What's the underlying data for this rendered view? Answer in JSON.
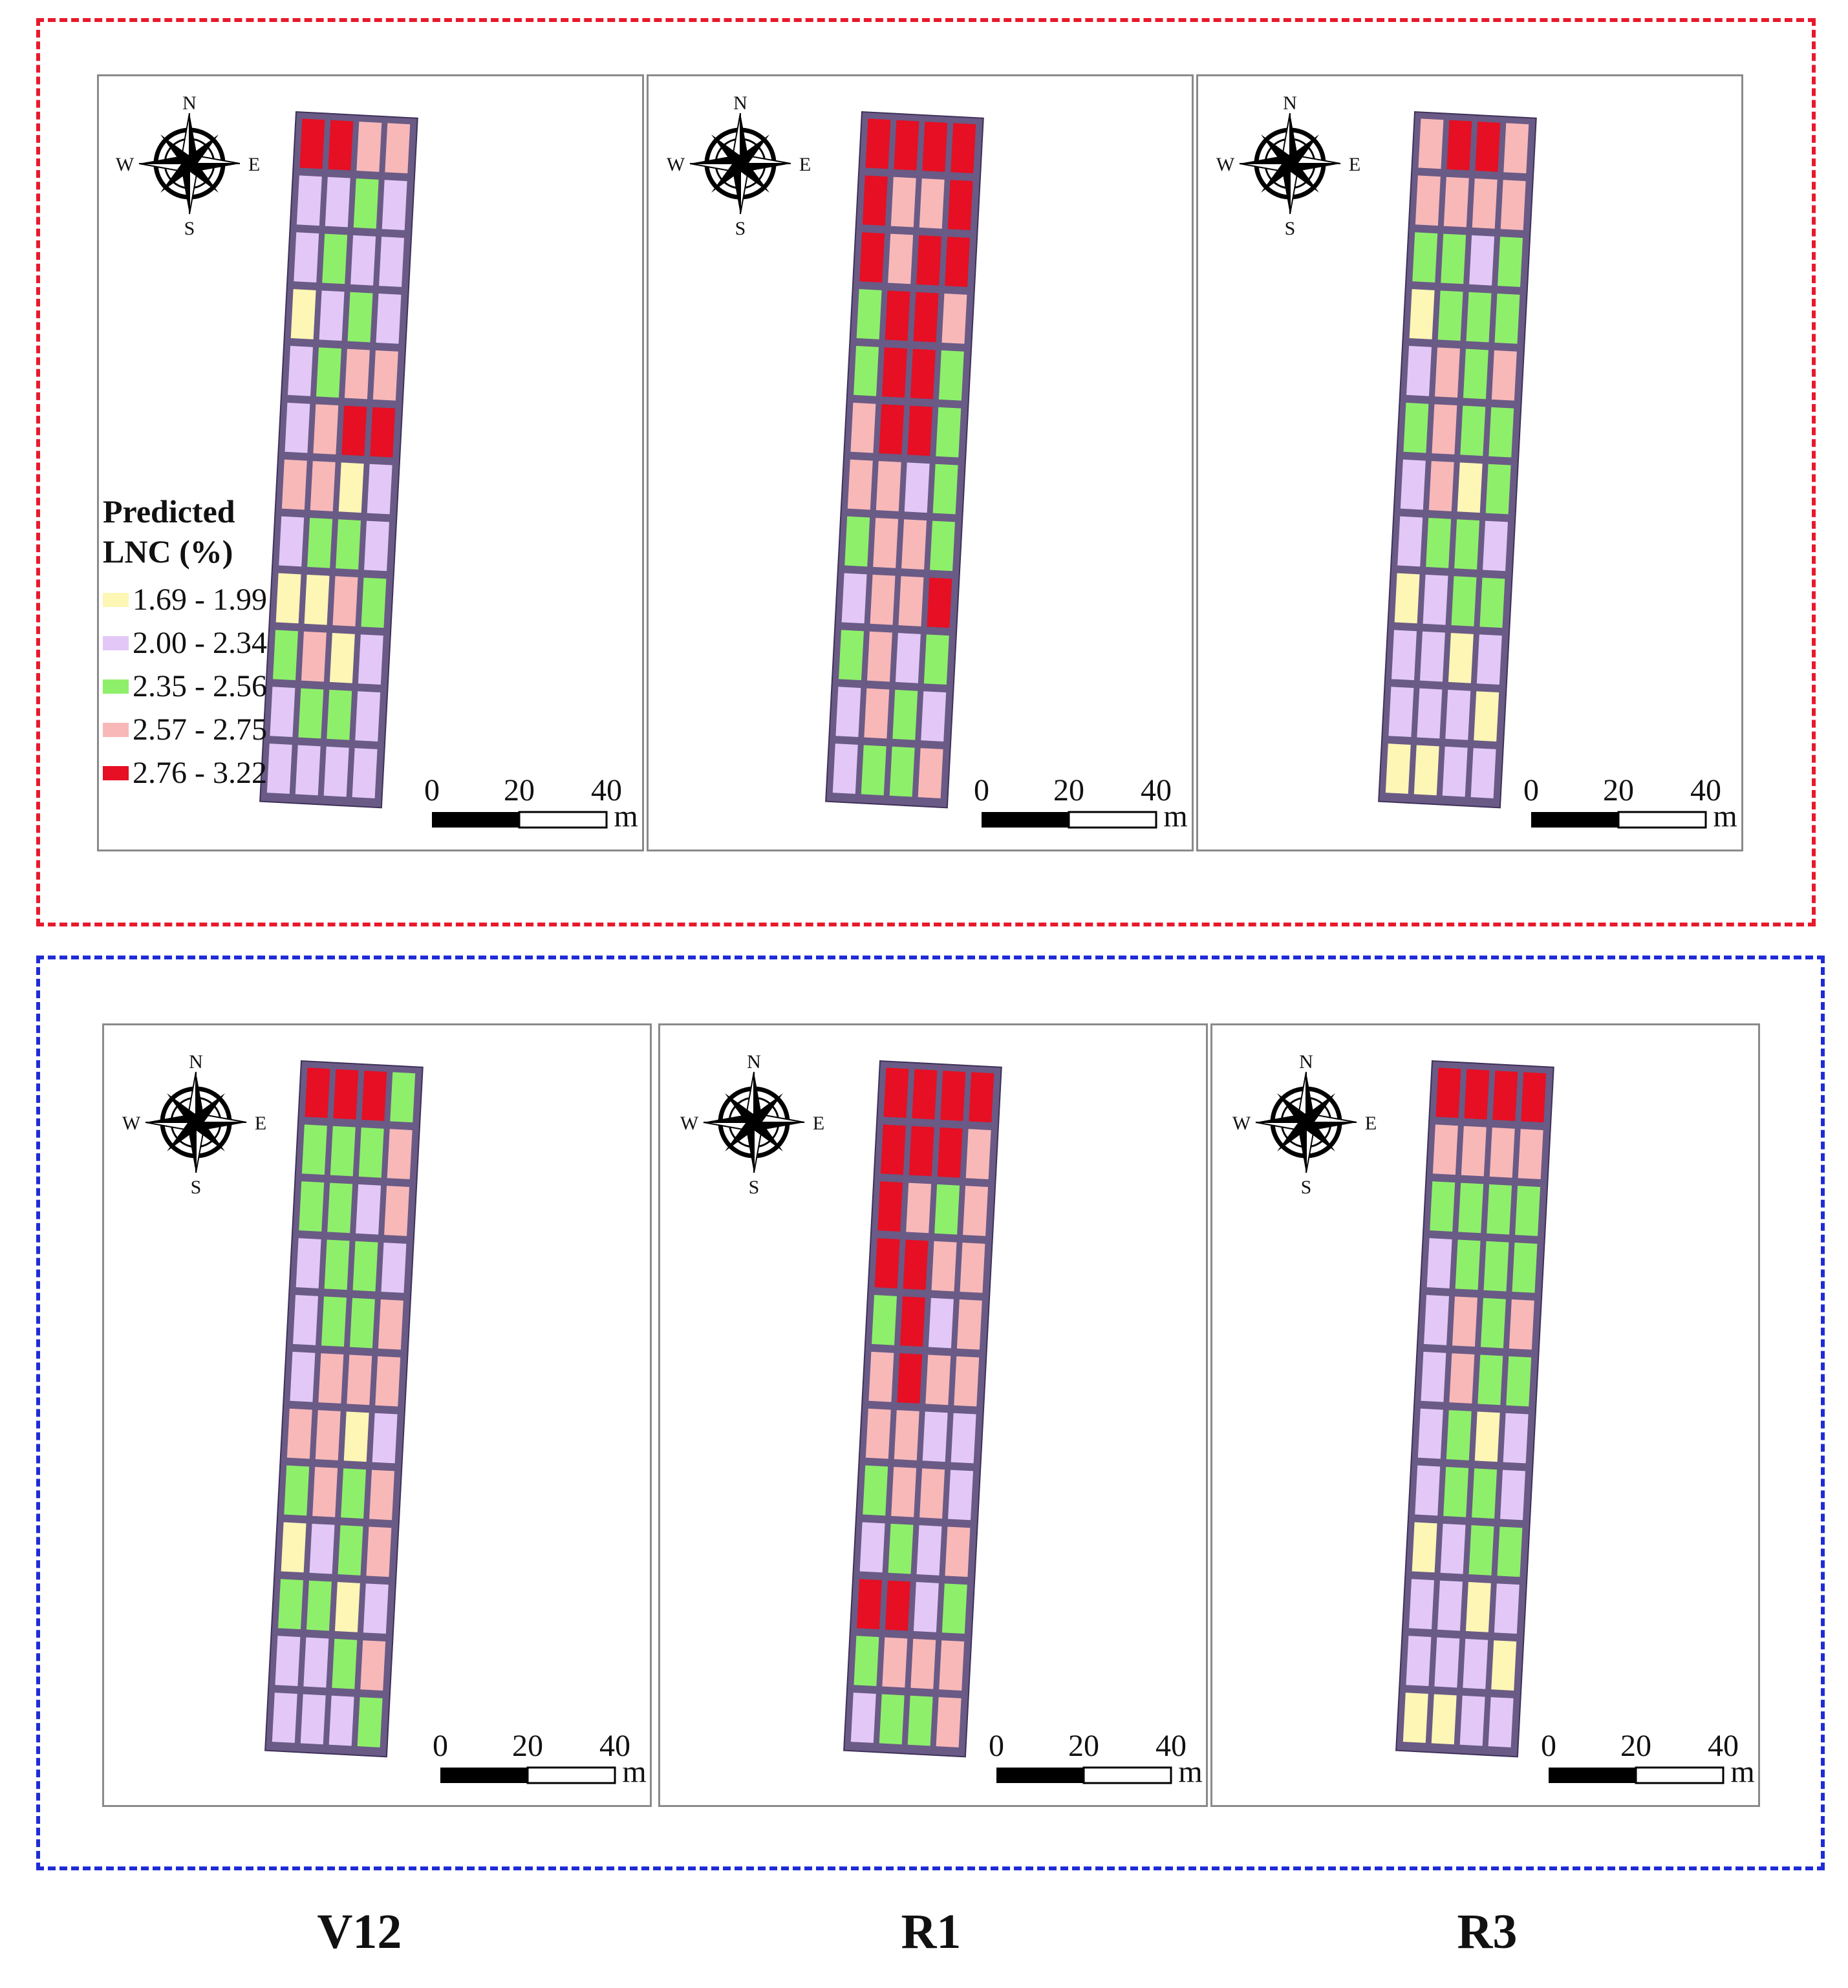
{
  "stages": [
    "V12",
    "R1",
    "R3"
  ],
  "compass": {
    "north": "N",
    "south": "S",
    "east": "E",
    "west": "W"
  },
  "scalebar": {
    "ticks": [
      "0",
      "20",
      "40"
    ],
    "unit": "m"
  },
  "legend": {
    "title_line1": "Predicted",
    "title_line2": "LNC (%)",
    "classes": [
      {
        "label": "1.69 - 1.99",
        "color": "#fdf6b5"
      },
      {
        "label": "2.00 - 2.34",
        "color": "#e3c8f7"
      },
      {
        "label": "2.35 - 2.56",
        "color": "#8ef06a"
      },
      {
        "label": "2.57 - 2.75",
        "color": "#f8b8b8"
      },
      {
        "label": "2.76 - 3.22",
        "color": "#e60f23"
      }
    ]
  },
  "field_background": "#6a5a86",
  "groups": [
    {
      "name": "top",
      "border_color": "#e8192c",
      "maps": [
        {
          "stage": "V12",
          "grid": [
            "4433",
            "1121",
            "1211",
            "0121",
            "1233",
            "1344",
            "3301",
            "1221",
            "0032",
            "2301",
            "1221",
            "1111"
          ]
        },
        {
          "stage": "R1",
          "grid": [
            "4444",
            "4334",
            "4344",
            "2443",
            "2442",
            "3442",
            "3312",
            "2332",
            "1334",
            "2312",
            "1321",
            "1223"
          ]
        },
        {
          "stage": "R3",
          "grid": [
            "3443",
            "3333",
            "2212",
            "0222",
            "1323",
            "2322",
            "1302",
            "1221",
            "0122",
            "1101",
            "1110",
            "0011"
          ]
        }
      ]
    },
    {
      "name": "bottom",
      "border_color": "#1f2bd6",
      "maps": [
        {
          "stage": "V12",
          "grid": [
            "4442",
            "2223",
            "2213",
            "1221",
            "1223",
            "1333",
            "3301",
            "2323",
            "0123",
            "2201",
            "1123",
            "1112"
          ]
        },
        {
          "stage": "R1",
          "grid": [
            "4444",
            "4443",
            "4323",
            "4433",
            "2413",
            "3433",
            "3311",
            "2331",
            "1213",
            "4412",
            "2333",
            "1223"
          ]
        },
        {
          "stage": "R3",
          "grid": [
            "4444",
            "3333",
            "2222",
            "1222",
            "1323",
            "1322",
            "1201",
            "1221",
            "0122",
            "1101",
            "1110",
            "0011"
          ]
        }
      ]
    }
  ]
}
